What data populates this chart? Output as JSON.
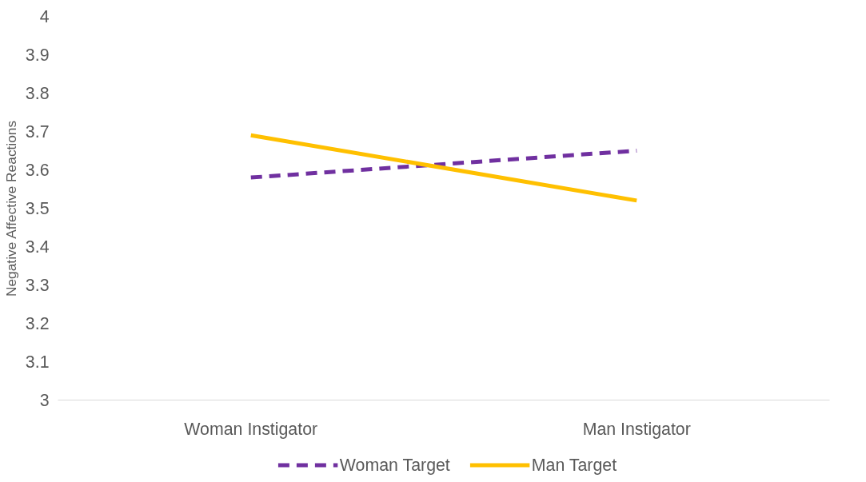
{
  "chart_data": {
    "type": "line",
    "ylabel": "Negative Affective Reactions",
    "categories": [
      "Woman Instigator",
      "Man Instigator"
    ],
    "series": [
      {
        "name": "Woman Target",
        "color": "#7030a0",
        "values": [
          3.58,
          3.65
        ],
        "line_style": "dashed"
      },
      {
        "name": "Man Target",
        "color": "#ffc000",
        "values": [
          3.69,
          3.52
        ],
        "line_style": "solid"
      }
    ],
    "ylim": [
      3,
      4
    ],
    "yticks": [
      3,
      3.1,
      3.2,
      3.3,
      3.4,
      3.5,
      3.6,
      3.7,
      3.8,
      3.9,
      4
    ],
    "grid": false,
    "legend": "bottom",
    "marker": "none"
  }
}
